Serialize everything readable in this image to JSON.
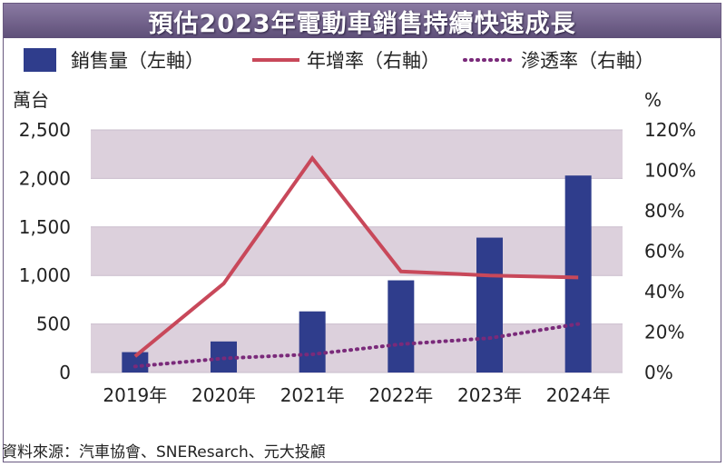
{
  "colors": {
    "title_bar": "#6b5c86",
    "band": "#dcd0dc",
    "bar": "#2f3d8c",
    "growth_line": "#c8485a",
    "penetration_line": "#7a2a7a"
  },
  "chart_data": {
    "type": "bar",
    "title": "預估2023年電動車銷售持續快速成長",
    "categories": [
      "2019年",
      "2020年",
      "2021年",
      "2022年",
      "2023年",
      "2024年"
    ],
    "left_axis": {
      "unit_label": "萬台",
      "range": [
        0,
        2500
      ],
      "ticks": [
        0,
        500,
        1000,
        1500,
        2000,
        2500
      ],
      "tick_labels": [
        "0",
        "500",
        "1,000",
        "1,500",
        "2,000",
        "2,500"
      ]
    },
    "right_axis": {
      "unit_label": "%",
      "range": [
        0,
        120
      ],
      "ticks": [
        0,
        20,
        40,
        60,
        80,
        100,
        120
      ],
      "tick_labels": [
        "0%",
        "20%",
        "40%",
        "60%",
        "80%",
        "100%",
        "120%"
      ]
    },
    "series": [
      {
        "name": "銷售量（左軸）",
        "type": "bar",
        "axis": "left",
        "values": [
          210,
          320,
          630,
          950,
          1390,
          2030
        ]
      },
      {
        "name": "年增率（右軸）",
        "type": "line",
        "axis": "right",
        "values": [
          8,
          44,
          106,
          50,
          48,
          47
        ]
      },
      {
        "name": "滲透率（右軸）",
        "type": "dotted-line",
        "axis": "right",
        "values": [
          3,
          7,
          9,
          14,
          17,
          24
        ]
      }
    ],
    "legend_position": "top",
    "banded_background": true
  },
  "source": "資料來源：汽車協會、SNEResarch、元大投顧"
}
